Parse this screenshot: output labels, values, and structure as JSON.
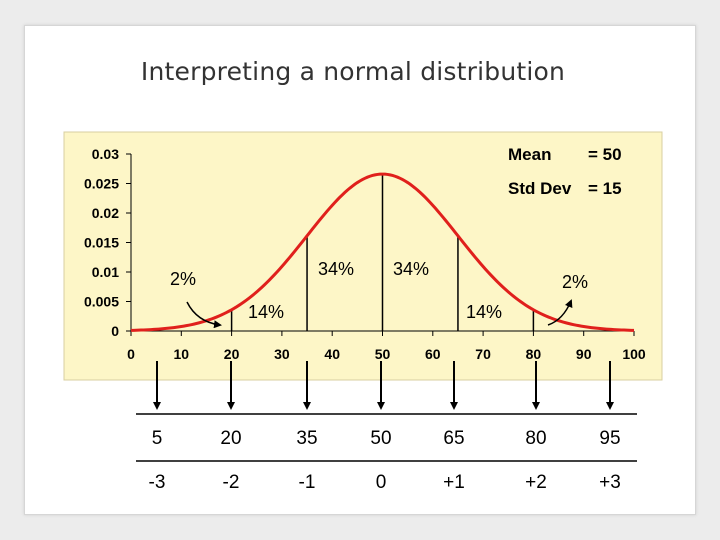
{
  "title": "Interpreting a normal distribution",
  "colors": {
    "panel": "#fdf6c7",
    "panel_border": "#d8cfa0",
    "curve": "#e0201c",
    "text": "#000000",
    "title": "#333333"
  },
  "annotations": {
    "mean_label": "Mean",
    "mean_value": "= 50",
    "sd_label": "Std Dev",
    "sd_value": "= 15",
    "pct_34_left": "34%",
    "pct_34_right": "34%",
    "pct_14_left": "14%",
    "pct_14_right": "14%",
    "pct_2_left": "2%",
    "pct_2_right": "2%"
  },
  "chart_data": {
    "type": "line",
    "mean": 50,
    "sd": 15,
    "xlim": [
      0,
      100
    ],
    "ylim": [
      0,
      0.03
    ],
    "x_ticks": [
      "0",
      "10",
      "20",
      "30",
      "40",
      "50",
      "60",
      "70",
      "80",
      "90",
      "100"
    ],
    "y_ticks": [
      "0",
      "0.005",
      "0.01",
      "0.015",
      "0.02",
      "0.025",
      "0.03"
    ],
    "sd_lines_x": [
      20,
      35,
      50,
      65,
      80
    ],
    "grid": false,
    "legend": "none"
  },
  "table": {
    "values": [
      "5",
      "20",
      "35",
      "50",
      "65",
      "80",
      "95"
    ],
    "sds": [
      "-3",
      "-2",
      "-1",
      "0",
      "+1",
      "+2",
      "+3"
    ]
  }
}
